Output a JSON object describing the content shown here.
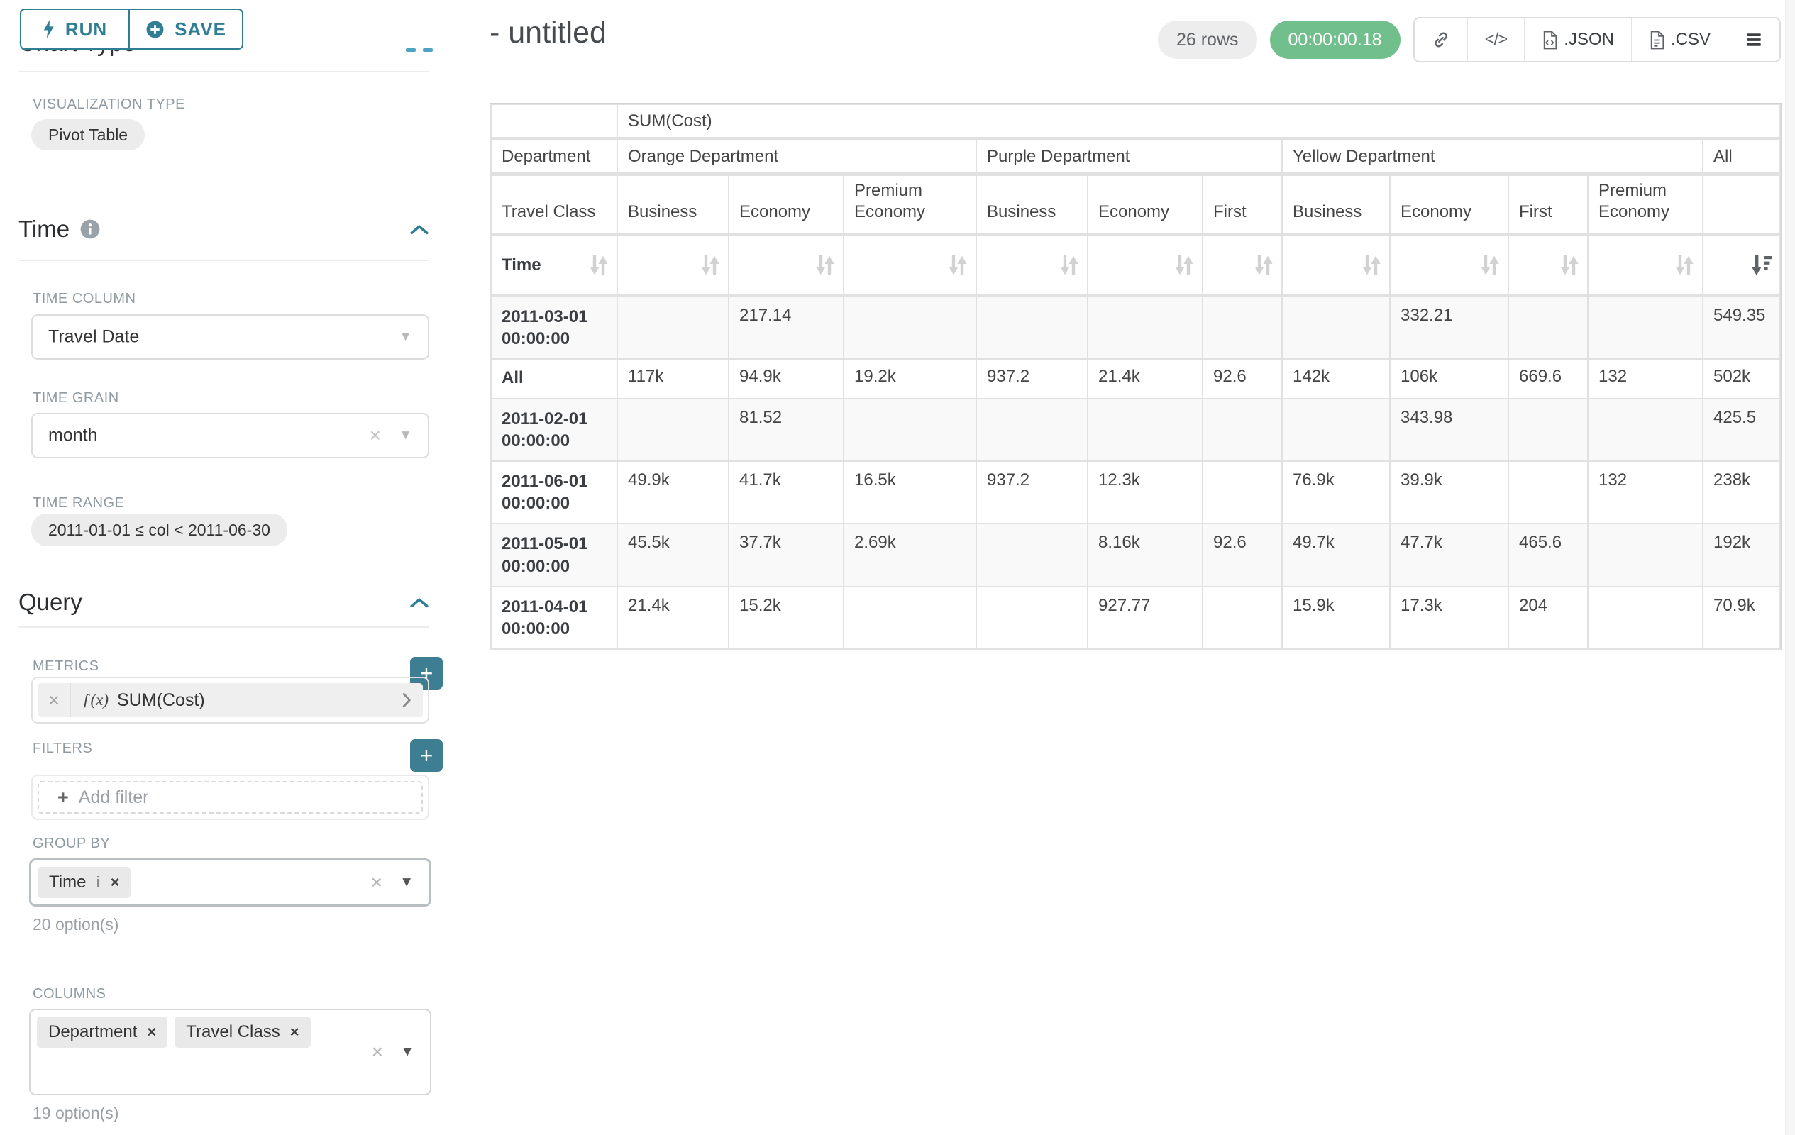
{
  "panel": {
    "run_label": "RUN",
    "save_label": "SAVE",
    "chart_type_heading": "Chart Type",
    "viz": {
      "label": "VISUALIZATION TYPE",
      "value": "Pivot Table"
    },
    "time": {
      "heading": "Time",
      "column_label": "TIME COLUMN",
      "column_value": "Travel Date",
      "grain_label": "TIME GRAIN",
      "grain_value": "month",
      "range_label": "TIME RANGE",
      "range_value": "2011-01-01 ≤ col < 2011-06-30"
    },
    "query": {
      "heading": "Query",
      "metrics_label": "METRICS",
      "metric_fx": "ƒ(x)",
      "metric_name": "SUM(Cost)",
      "filters_label": "FILTERS",
      "add_filter_label": "Add filter",
      "group_by_label": "GROUP BY",
      "group_by_values": [
        "Time"
      ],
      "group_by_hint": "20 option(s)",
      "columns_label": "COLUMNS",
      "columns_values": [
        "Department",
        "Travel Class"
      ],
      "columns_hint": "19 option(s)"
    }
  },
  "header": {
    "title": "- untitled",
    "rows_badge": "26 rows",
    "timer_badge": "00:00:00.18",
    "export_json_label": ".JSON",
    "export_csv_label": ".CSV"
  },
  "colors": {
    "accent": "#2f7e93",
    "plus_button": "#3d7e93",
    "timer_green": "#71bf8c"
  },
  "pivot_table": {
    "type": "table",
    "metric": "SUM(Cost)",
    "column_dimensions": [
      "Department",
      "Travel Class"
    ],
    "row_dimension": "Time",
    "sort": {
      "column": "All",
      "direction": "desc"
    },
    "groups": [
      {
        "label": "Orange Department",
        "columns": [
          "Business",
          "Economy",
          "Premium Economy"
        ]
      },
      {
        "label": "Purple Department",
        "columns": [
          "Business",
          "Economy",
          "First"
        ]
      },
      {
        "label": "Yellow Department",
        "columns": [
          "Business",
          "Economy",
          "First",
          "Premium Economy"
        ]
      },
      {
        "label": "All",
        "columns": [
          ""
        ]
      }
    ],
    "rows": [
      {
        "label": "2011-03-01 00:00:00",
        "values": [
          "",
          "217.14",
          "",
          "",
          "",
          "",
          "",
          "332.21",
          "",
          "",
          "549.35"
        ]
      },
      {
        "label": "All",
        "values": [
          "117k",
          "94.9k",
          "19.2k",
          "937.2",
          "21.4k",
          "92.6",
          "142k",
          "106k",
          "669.6",
          "132",
          "502k"
        ]
      },
      {
        "label": "2011-02-01 00:00:00",
        "values": [
          "",
          "81.52",
          "",
          "",
          "",
          "",
          "",
          "343.98",
          "",
          "",
          "425.5"
        ]
      },
      {
        "label": "2011-06-01 00:00:00",
        "values": [
          "49.9k",
          "41.7k",
          "16.5k",
          "937.2",
          "12.3k",
          "",
          "76.9k",
          "39.9k",
          "",
          "132",
          "238k"
        ]
      },
      {
        "label": "2011-05-01 00:00:00",
        "values": [
          "45.5k",
          "37.7k",
          "2.69k",
          "",
          "8.16k",
          "92.6",
          "49.7k",
          "47.7k",
          "465.6",
          "",
          "192k"
        ]
      },
      {
        "label": "2011-04-01 00:00:00",
        "values": [
          "21.4k",
          "15.2k",
          "",
          "",
          "927.77",
          "",
          "15.9k",
          "17.3k",
          "204",
          "",
          "70.9k"
        ]
      }
    ]
  }
}
